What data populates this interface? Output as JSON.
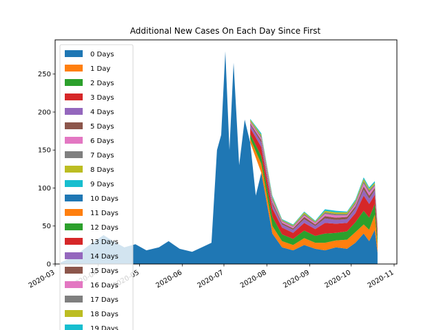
{
  "chart_data": {
    "type": "area",
    "stacked": true,
    "title": "Additional New Cases On Each Day Since First",
    "xlabel": "",
    "ylabel": "",
    "xlim": [
      "2020-03-01",
      "2020-11-03"
    ],
    "ylim": [
      0,
      295
    ],
    "yticks": [
      0,
      50,
      100,
      150,
      200,
      250
    ],
    "xticks": [
      "2020-03",
      "2020-04",
      "2020-05",
      "2020-06",
      "2020-07",
      "2020-08",
      "2020-09",
      "2020-10",
      "2020-11"
    ],
    "legend_position": "top-left",
    "colors": [
      "#1f77b4",
      "#ff7f0e",
      "#2ca02c",
      "#d62728",
      "#9467bd",
      "#8c564b",
      "#e377c2",
      "#7f7f7f",
      "#bcbd22",
      "#17becf"
    ],
    "series": [
      {
        "name": "0 Days",
        "x": [
          "2020-03-05",
          "2020-03-15",
          "2020-03-25",
          "2020-04-05",
          "2020-04-12",
          "2020-04-20",
          "2020-04-28",
          "2020-05-06",
          "2020-05-15",
          "2020-05-22",
          "2020-05-30",
          "2020-06-08",
          "2020-06-15",
          "2020-06-22",
          "2020-06-26",
          "2020-06-29",
          "2020-07-02",
          "2020-07-05",
          "2020-07-08",
          "2020-07-12",
          "2020-07-16",
          "2020-07-20",
          "2020-07-24",
          "2020-07-28",
          "2020-08-05",
          "2020-08-12",
          "2020-08-20",
          "2020-08-28",
          "2020-09-05",
          "2020-09-12",
          "2020-09-20",
          "2020-09-28",
          "2020-10-04",
          "2020-10-10",
          "2020-10-14",
          "2020-10-18",
          "2020-10-20"
        ],
        "values": [
          2,
          10,
          24,
          38,
          30,
          22,
          26,
          18,
          22,
          30,
          20,
          16,
          22,
          28,
          150,
          170,
          280,
          150,
          265,
          130,
          190,
          160,
          90,
          120,
          40,
          22,
          18,
          25,
          20,
          18,
          22,
          20,
          28,
          40,
          30,
          45,
          15
        ]
      },
      {
        "name": "1 Day",
        "x": [
          "2020-07-20",
          "2020-07-28",
          "2020-08-05",
          "2020-08-12",
          "2020-08-20",
          "2020-08-28",
          "2020-09-05",
          "2020-09-12",
          "2020-09-20",
          "2020-09-28",
          "2020-10-04",
          "2020-10-10",
          "2020-10-14",
          "2020-10-18",
          "2020-10-20"
        ],
        "values": [
          5,
          12,
          10,
          8,
          7,
          9,
          8,
          10,
          9,
          12,
          14,
          12,
          15,
          20,
          10
        ]
      },
      {
        "name": "2 Days",
        "x": [
          "2020-07-20",
          "2020-07-28",
          "2020-08-05",
          "2020-08-12",
          "2020-08-20",
          "2020-08-28",
          "2020-09-05",
          "2020-09-12",
          "2020-09-20",
          "2020-09-28",
          "2020-10-04",
          "2020-10-10",
          "2020-10-14",
          "2020-10-18",
          "2020-10-20"
        ],
        "values": [
          6,
          10,
          12,
          9,
          8,
          10,
          9,
          12,
          10,
          11,
          13,
          18,
          16,
          14,
          9
        ]
      },
      {
        "name": "3 Days",
        "x": [
          "2020-07-20",
          "2020-07-28",
          "2020-08-05",
          "2020-08-12",
          "2020-08-20",
          "2020-08-28",
          "2020-09-05",
          "2020-09-12",
          "2020-09-20",
          "2020-09-28",
          "2020-10-04",
          "2020-10-10",
          "2020-10-14",
          "2020-10-18",
          "2020-10-20"
        ],
        "values": [
          8,
          12,
          11,
          9,
          8,
          10,
          9,
          14,
          12,
          11,
          12,
          20,
          18,
          12,
          8
        ]
      },
      {
        "name": "4 Days",
        "x": [
          "2020-07-20",
          "2020-07-28",
          "2020-08-05",
          "2020-08-12",
          "2020-08-20",
          "2020-08-28",
          "2020-09-05",
          "2020-09-12",
          "2020-09-20",
          "2020-09-28",
          "2020-10-04",
          "2020-10-10",
          "2020-10-14",
          "2020-10-18",
          "2020-10-20"
        ],
        "values": [
          4,
          6,
          5,
          4,
          4,
          5,
          4,
          6,
          5,
          5,
          6,
          8,
          7,
          6,
          4
        ]
      },
      {
        "name": "5 Days",
        "x": [
          "2020-07-20",
          "2020-07-28",
          "2020-08-05",
          "2020-08-12",
          "2020-08-20",
          "2020-08-28",
          "2020-09-05",
          "2020-09-12",
          "2020-09-20",
          "2020-09-28",
          "2020-10-04",
          "2020-10-10",
          "2020-10-14",
          "2020-10-18",
          "2020-10-20"
        ],
        "values": [
          2,
          3,
          3,
          2,
          2,
          3,
          2,
          3,
          3,
          3,
          3,
          4,
          4,
          3,
          2
        ]
      },
      {
        "name": "6 Days",
        "x": [
          "2020-07-20",
          "2020-07-28",
          "2020-08-05",
          "2020-08-12",
          "2020-08-20",
          "2020-08-28",
          "2020-09-05",
          "2020-09-12",
          "2020-09-20",
          "2020-09-28",
          "2020-10-04",
          "2020-10-10",
          "2020-10-14",
          "2020-10-18",
          "2020-10-20"
        ],
        "values": [
          2,
          3,
          3,
          2,
          2,
          2,
          2,
          3,
          3,
          2,
          3,
          4,
          4,
          3,
          2
        ]
      },
      {
        "name": "7 Days",
        "x": [
          "2020-07-20",
          "2020-07-28",
          "2020-08-05",
          "2020-08-12",
          "2020-08-20",
          "2020-08-28",
          "2020-09-05",
          "2020-09-12",
          "2020-09-20",
          "2020-09-28",
          "2020-10-04",
          "2020-10-10",
          "2020-10-14",
          "2020-10-18",
          "2020-10-20"
        ],
        "values": [
          1,
          2,
          2,
          1,
          1,
          2,
          1,
          2,
          2,
          2,
          2,
          3,
          3,
          2,
          1
        ]
      },
      {
        "name": "8 Days",
        "x": [
          "2020-07-20",
          "2020-07-28",
          "2020-08-05",
          "2020-08-12",
          "2020-08-20",
          "2020-08-28",
          "2020-09-05",
          "2020-09-12",
          "2020-09-20",
          "2020-09-28",
          "2020-10-04",
          "2020-10-10",
          "2020-10-14",
          "2020-10-18",
          "2020-10-20"
        ],
        "values": [
          2,
          2,
          2,
          1,
          1,
          2,
          1,
          2,
          2,
          2,
          2,
          3,
          2,
          2,
          1
        ]
      },
      {
        "name": "9 Days",
        "x": [
          "2020-07-20",
          "2020-07-28",
          "2020-08-05",
          "2020-08-12",
          "2020-08-20",
          "2020-08-28",
          "2020-09-05",
          "2020-09-12",
          "2020-09-20",
          "2020-09-28",
          "2020-10-04",
          "2020-10-10",
          "2020-10-14",
          "2020-10-18",
          "2020-10-20"
        ],
        "values": [
          1,
          2,
          2,
          1,
          1,
          1,
          1,
          2,
          2,
          1,
          2,
          2,
          2,
          2,
          1
        ]
      },
      {
        "name": "10 Days",
        "x": [],
        "values": []
      },
      {
        "name": "11 Days",
        "x": [],
        "values": []
      },
      {
        "name": "12 Days",
        "x": [],
        "values": []
      },
      {
        "name": "13 Days",
        "x": [],
        "values": []
      },
      {
        "name": "14 Days",
        "x": [],
        "values": []
      },
      {
        "name": "15 Days",
        "x": [],
        "values": []
      },
      {
        "name": "16 Days",
        "x": [],
        "values": []
      },
      {
        "name": "17 Days",
        "x": [],
        "values": []
      },
      {
        "name": "18 Days",
        "x": [],
        "values": []
      },
      {
        "name": "19 Days",
        "x": [],
        "values": []
      }
    ]
  }
}
